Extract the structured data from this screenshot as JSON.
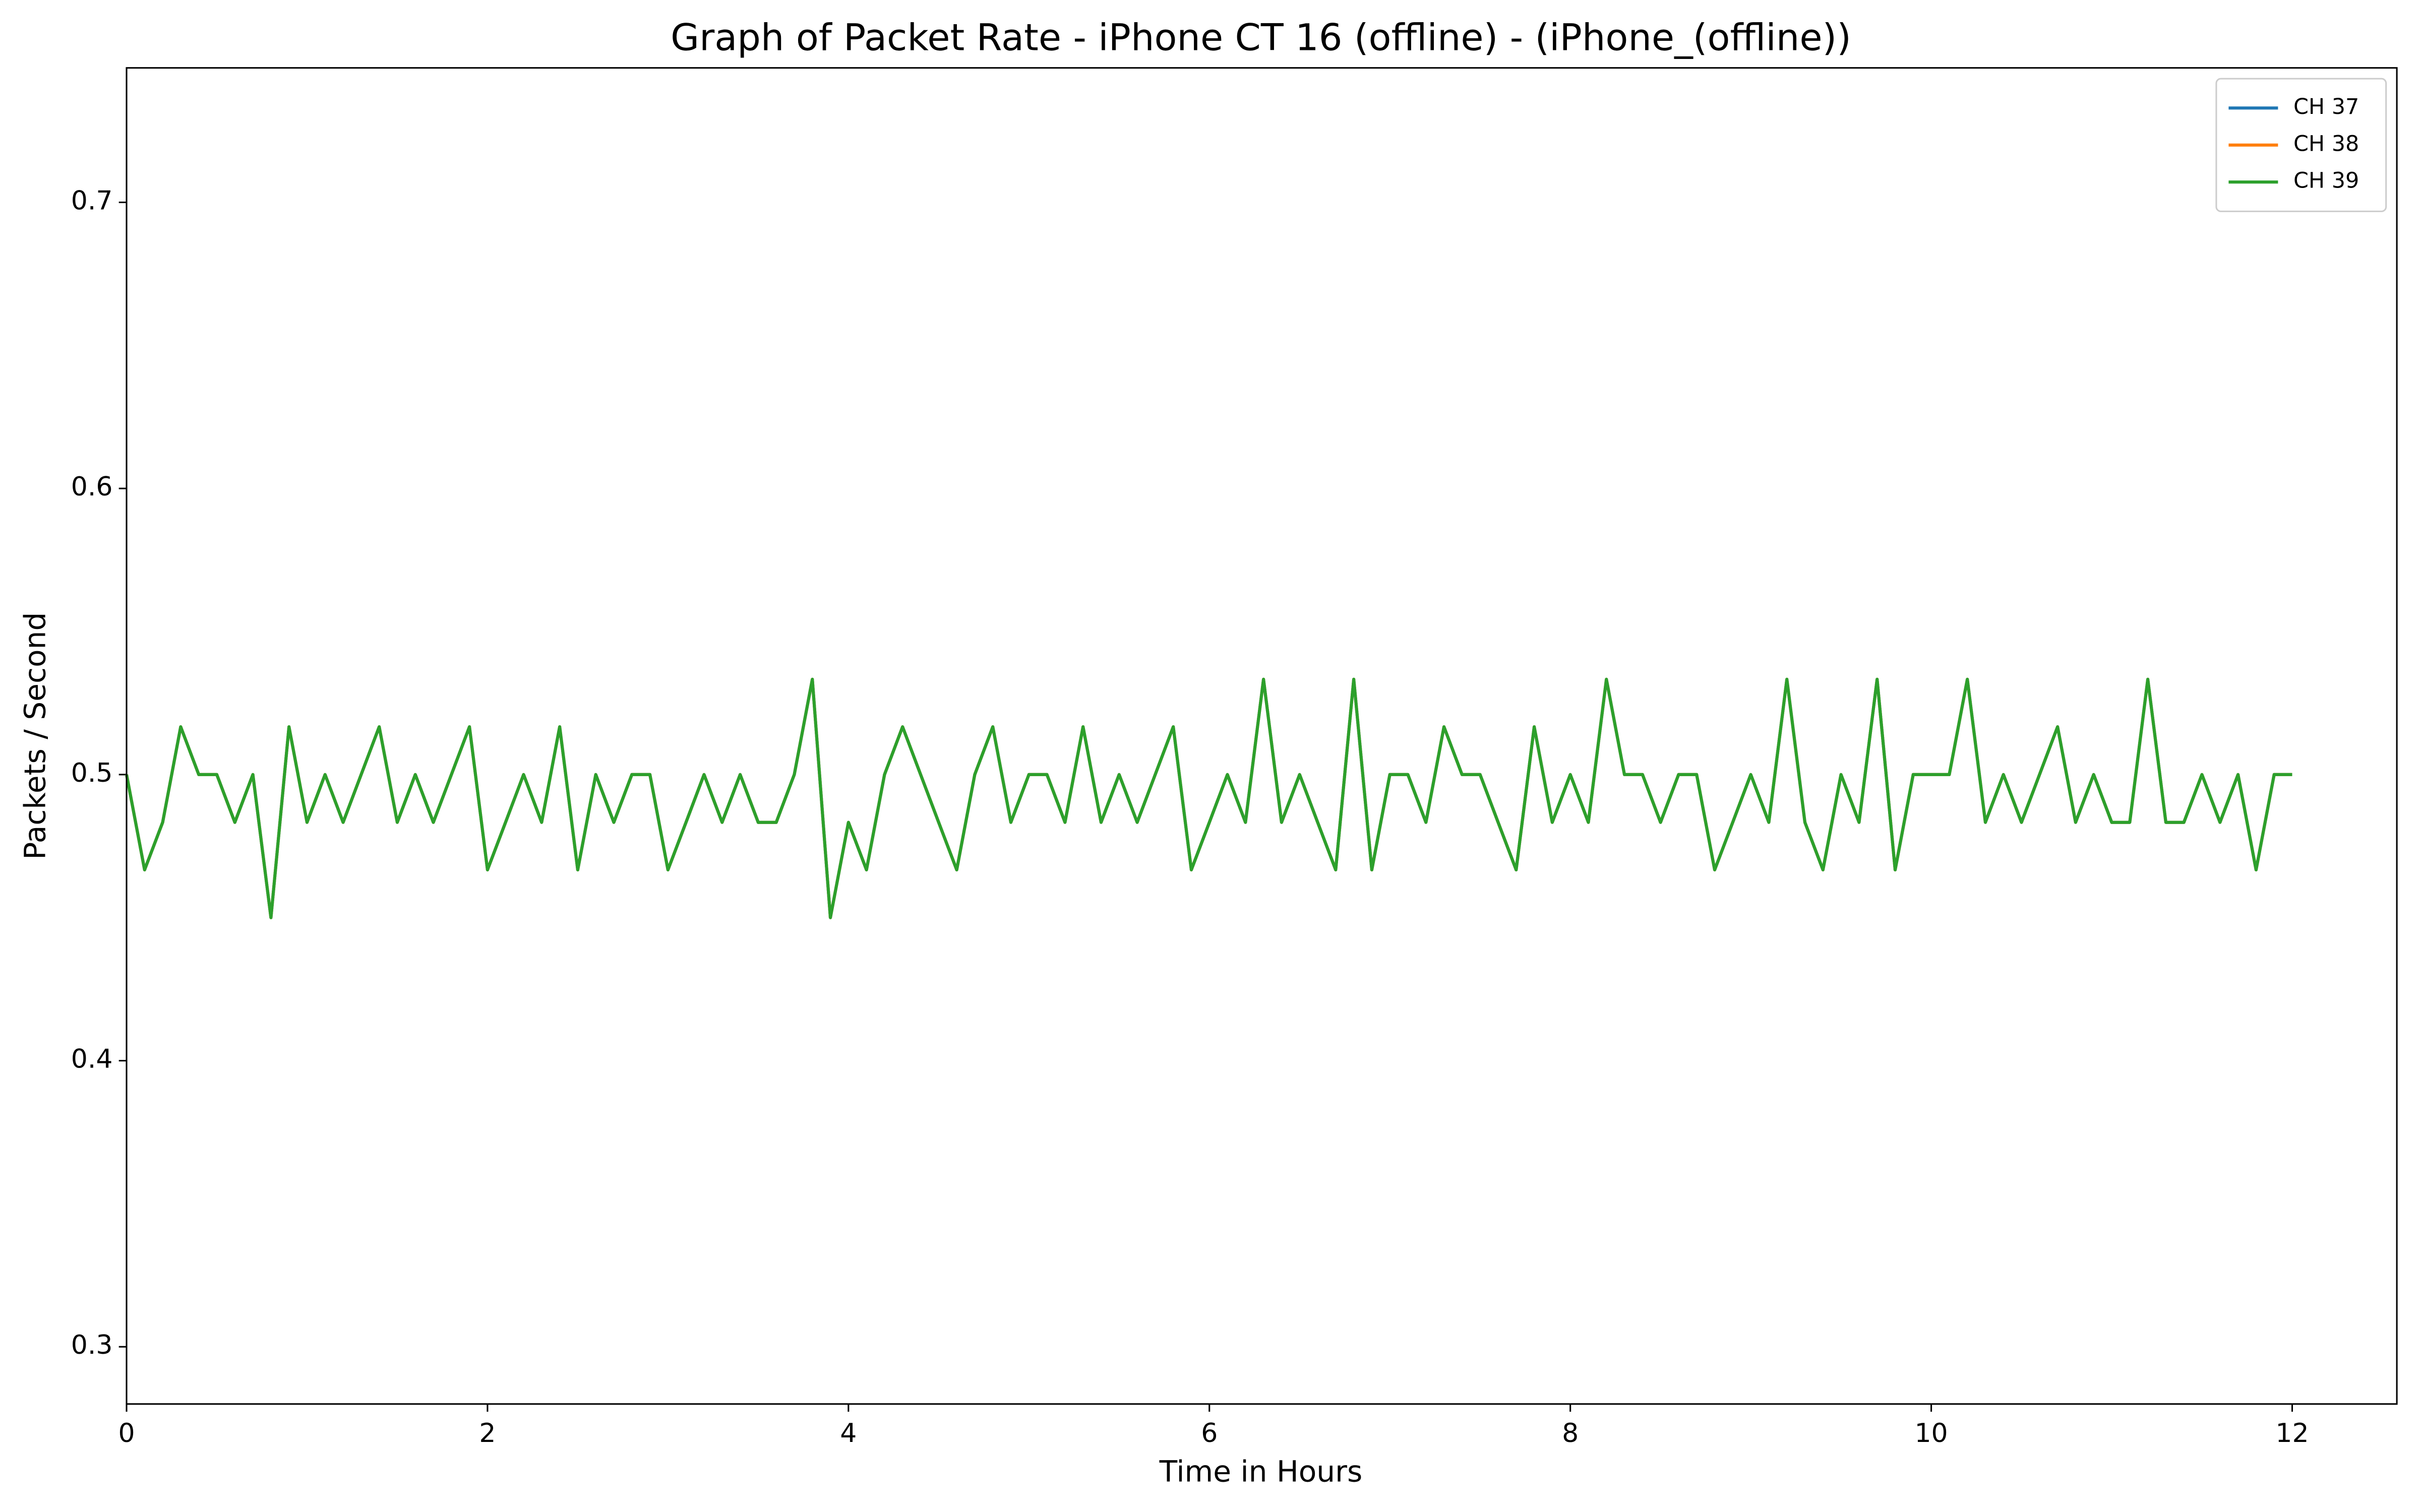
{
  "chart_data": {
    "type": "line",
    "title": "Graph of Packet Rate - iPhone CT 16 (offline) - (iPhone_(offline))",
    "x_label": "Time in Hours",
    "y_label": "Packets / Second",
    "xlim": [
      0,
      12.58
    ],
    "ylim": [
      0.28,
      0.747
    ],
    "xticks": [
      0,
      2,
      4,
      6,
      8,
      10,
      12
    ],
    "yticks": [
      0.3,
      0.4,
      0.5,
      0.6,
      0.7
    ],
    "legend": "upper right",
    "x": [
      0,
      0.1,
      0.2,
      0.3,
      0.4,
      0.5,
      0.6,
      0.7,
      0.8,
      0.9,
      1,
      1.1,
      1.2,
      1.3,
      1.4,
      1.5,
      1.6,
      1.7,
      1.8,
      1.9,
      2,
      2.1,
      2.2,
      2.3,
      2.4,
      2.5,
      2.6,
      2.7,
      2.8,
      2.9,
      3,
      3.1,
      3.2,
      3.3,
      3.4,
      3.5,
      3.6,
      3.7,
      3.8,
      3.9,
      4,
      4.1,
      4.2,
      4.3,
      4.4,
      4.5,
      4.6,
      4.7,
      4.8,
      4.9,
      5,
      5.1,
      5.2,
      5.3,
      5.4,
      5.5,
      5.6,
      5.7,
      5.8,
      5.9,
      6,
      6.1,
      6.2,
      6.3,
      6.4,
      6.5,
      6.6,
      6.7,
      6.8,
      6.9,
      7,
      7.1,
      7.2,
      7.3,
      7.4,
      7.5,
      7.6,
      7.7,
      7.8,
      7.9,
      8,
      8.1,
      8.2,
      8.3,
      8.4,
      8.5,
      8.6,
      8.7,
      8.8,
      8.9,
      9,
      9.1,
      9.2,
      9.3,
      9.4,
      9.5,
      9.6,
      9.7,
      9.8,
      9.9,
      10,
      10.1,
      10.2,
      10.3,
      10.4,
      10.5,
      10.6,
      10.7,
      10.8,
      10.9,
      11,
      11.1,
      11.2,
      11.3,
      11.4,
      11.5,
      11.6,
      11.7,
      11.8,
      11.9,
      12
    ],
    "series": [
      {
        "name": "CH 37",
        "color": "#1f77b4",
        "values": [
          0.5,
          0.4667,
          0.4833,
          0.5167,
          0.5,
          0.5,
          0.4833,
          0.5,
          0.45,
          0.5167,
          0.4833,
          0.5,
          0.4833,
          0.5,
          0.5167,
          0.4833,
          0.5,
          0.4833,
          0.5,
          0.5167,
          0.4667,
          0.4833,
          0.5,
          0.4833,
          0.5167,
          0.4667,
          0.5,
          0.4833,
          0.5,
          0.5,
          0.4667,
          0.4833,
          0.5,
          0.4833,
          0.5,
          0.4833,
          0.4833,
          0.5,
          0.5333,
          0.45,
          0.4833,
          0.4667,
          0.5,
          0.5167,
          0.5,
          0.4833,
          0.4667,
          0.5,
          0.5167,
          0.4833,
          0.5,
          0.5,
          0.4833,
          0.5167,
          0.4833,
          0.5,
          0.4833,
          0.5,
          0.5167,
          0.4667,
          0.4833,
          0.5,
          0.4833,
          0.5333,
          0.4833,
          0.5,
          0.4833,
          0.4667,
          0.5333,
          0.4667,
          0.5,
          0.5,
          0.4833,
          0.5167,
          0.5,
          0.5,
          0.4833,
          0.4667,
          0.5167,
          0.4833,
          0.5,
          0.4833,
          0.5333,
          0.5,
          0.5,
          0.4833,
          0.5,
          0.5,
          0.4667,
          0.4833,
          0.5,
          0.4833,
          0.5333,
          0.4833,
          0.4667,
          0.5,
          0.4833,
          0.5333,
          0.4667,
          0.5,
          0.5,
          0.5,
          0.5333,
          0.4833,
          0.5,
          0.4833,
          0.5,
          0.5167,
          0.4833,
          0.5,
          0.4833,
          0.4833,
          0.5333,
          0.4833,
          0.4833,
          0.5,
          0.4833,
          0.5,
          0.4667,
          0.5,
          0.5
        ]
      },
      {
        "name": "CH 38",
        "color": "#ff7f0e",
        "values": [
          0.5,
          0.4667,
          0.4833,
          0.5167,
          0.5,
          0.5,
          0.4833,
          0.5,
          0.45,
          0.5167,
          0.4833,
          0.5,
          0.4833,
          0.5,
          0.5167,
          0.4833,
          0.5,
          0.4833,
          0.5,
          0.5167,
          0.4667,
          0.4833,
          0.5,
          0.4833,
          0.5167,
          0.4667,
          0.5,
          0.4833,
          0.5,
          0.5,
          0.4667,
          0.4833,
          0.5,
          0.4833,
          0.5,
          0.4833,
          0.4833,
          0.5,
          0.5333,
          0.45,
          0.4833,
          0.4667,
          0.5,
          0.5167,
          0.5,
          0.4833,
          0.4667,
          0.5,
          0.5167,
          0.4833,
          0.5,
          0.5,
          0.4833,
          0.5167,
          0.4833,
          0.5,
          0.4833,
          0.5,
          0.5167,
          0.4667,
          0.4833,
          0.5,
          0.4833,
          0.5333,
          0.4833,
          0.5,
          0.4833,
          0.4667,
          0.5333,
          0.4667,
          0.5,
          0.5,
          0.4833,
          0.5167,
          0.5,
          0.5,
          0.4833,
          0.4667,
          0.5167,
          0.4833,
          0.5,
          0.4833,
          0.5333,
          0.5,
          0.5,
          0.4833,
          0.5,
          0.5,
          0.4667,
          0.4833,
          0.5,
          0.4833,
          0.5333,
          0.4833,
          0.4667,
          0.5,
          0.4833,
          0.5333,
          0.4667,
          0.5,
          0.5,
          0.5,
          0.5333,
          0.4833,
          0.5,
          0.4833,
          0.5,
          0.5167,
          0.4833,
          0.5,
          0.4833,
          0.4833,
          0.5333,
          0.4833,
          0.4833,
          0.5,
          0.4833,
          0.5,
          0.4667,
          0.5,
          0.5
        ]
      },
      {
        "name": "CH 39",
        "color": "#2ca02c",
        "values": [
          0.5,
          0.4667,
          0.4833,
          0.5167,
          0.5,
          0.5,
          0.4833,
          0.5,
          0.45,
          0.5167,
          0.4833,
          0.5,
          0.4833,
          0.5,
          0.5167,
          0.4833,
          0.5,
          0.4833,
          0.5,
          0.5167,
          0.4667,
          0.4833,
          0.5,
          0.4833,
          0.5167,
          0.4667,
          0.5,
          0.4833,
          0.5,
          0.5,
          0.4667,
          0.4833,
          0.5,
          0.4833,
          0.5,
          0.4833,
          0.4833,
          0.5,
          0.5333,
          0.45,
          0.4833,
          0.4667,
          0.5,
          0.5167,
          0.5,
          0.4833,
          0.4667,
          0.5,
          0.5167,
          0.4833,
          0.5,
          0.5,
          0.4833,
          0.5167,
          0.4833,
          0.5,
          0.4833,
          0.5,
          0.5167,
          0.4667,
          0.4833,
          0.5,
          0.4833,
          0.5333,
          0.4833,
          0.5,
          0.4833,
          0.4667,
          0.5333,
          0.4667,
          0.5,
          0.5,
          0.4833,
          0.5167,
          0.5,
          0.5,
          0.4833,
          0.4667,
          0.5167,
          0.4833,
          0.5,
          0.4833,
          0.5333,
          0.5,
          0.5,
          0.4833,
          0.5,
          0.5,
          0.4667,
          0.4833,
          0.5,
          0.4833,
          0.5333,
          0.4833,
          0.4667,
          0.5,
          0.4833,
          0.5333,
          0.4667,
          0.5,
          0.5,
          0.5,
          0.5333,
          0.4833,
          0.5,
          0.4833,
          0.5,
          0.5167,
          0.4833,
          0.5,
          0.4833,
          0.4833,
          0.5333,
          0.4833,
          0.4833,
          0.5,
          0.4833,
          0.5,
          0.4667,
          0.5,
          0.5
        ]
      }
    ]
  }
}
